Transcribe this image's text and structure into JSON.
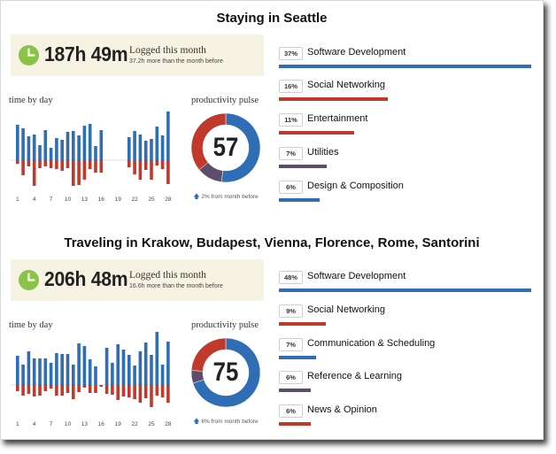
{
  "colors": {
    "blue": "#2f6db5",
    "red": "#c0392b",
    "purple": "#5b4d6b",
    "box_bg": "#f6f3e2",
    "clock_green": "#8bc34a"
  },
  "icons": {
    "clock": "clock-icon",
    "arrow": "up-arrow-icon"
  },
  "sections": [
    {
      "title": "Staying in Seattle",
      "logged": {
        "hours": "187h 49m",
        "label": "Logged this month",
        "sub": "37.2h more than the month before"
      },
      "time_by_day_label": "time by day",
      "productivity_label": "productivity pulse",
      "pulse": {
        "value": "57",
        "sub": "2% from month before",
        "segments": [
          {
            "color": "#2f6db5",
            "fraction": 0.52
          },
          {
            "color": "#5b4d6b",
            "fraction": 0.12
          },
          {
            "color": "#c0392b",
            "fraction": 0.36
          }
        ]
      },
      "day_ticks": [
        "1",
        "4",
        "7",
        "10",
        "13",
        "16",
        "19",
        "22",
        "25",
        "28"
      ],
      "days": {
        "up": [
          40,
          36,
          27,
          29,
          17,
          34,
          14,
          25,
          23,
          32,
          33,
          28,
          39,
          41,
          16,
          34,
          0,
          0,
          0,
          0,
          26,
          33,
          29,
          22,
          24,
          38,
          28,
          55
        ],
        "down": [
          4,
          17,
          7,
          29,
          9,
          7,
          9,
          10,
          12,
          9,
          29,
          28,
          22,
          10,
          14,
          14,
          0,
          0,
          0,
          0,
          8,
          16,
          22,
          11,
          22,
          6,
          10,
          27
        ]
      },
      "categories": [
        {
          "pct": "37%",
          "name": "Software Development",
          "value": 37,
          "color": "#2f6db5"
        },
        {
          "pct": "16%",
          "name": "Social Networking",
          "value": 16,
          "color": "#c0392b"
        },
        {
          "pct": "11%",
          "name": "Entertainment",
          "value": 11,
          "color": "#c0392b"
        },
        {
          "pct": "7%",
          "name": "Utilities",
          "value": 7,
          "color": "#5b4d6b"
        },
        {
          "pct": "6%",
          "name": "Design & Composition",
          "value": 6,
          "color": "#2f6db5"
        }
      ]
    },
    {
      "title": "Traveling in Krakow, Budapest, Vienna, Florence, Rome, Santorini",
      "logged": {
        "hours": "206h 48m",
        "label": "Logged this month",
        "sub": "16.6h more than the month before"
      },
      "time_by_day_label": "time by day",
      "productivity_label": "productivity pulse",
      "pulse": {
        "value": "75",
        "sub": "6% from month before",
        "segments": [
          {
            "color": "#2f6db5",
            "fraction": 0.7
          },
          {
            "color": "#5b4d6b",
            "fraction": 0.06
          },
          {
            "color": "#c0392b",
            "fraction": 0.24
          }
        ]
      },
      "day_ticks": [
        "1",
        "4",
        "7",
        "10",
        "13",
        "16",
        "19",
        "22",
        "25",
        "28"
      ],
      "days": {
        "up": [
          33,
          23,
          38,
          30,
          30,
          30,
          25,
          36,
          35,
          35,
          23,
          47,
          44,
          29,
          21,
          0,
          42,
          25,
          46,
          40,
          34,
          22,
          38,
          48,
          34,
          60,
          23,
          49
        ],
        "down": [
          7,
          12,
          10,
          13,
          12,
          7,
          4,
          12,
          12,
          9,
          16,
          8,
          3,
          9,
          9,
          2,
          10,
          11,
          17,
          13,
          14,
          16,
          20,
          15,
          25,
          12,
          14,
          20
        ]
      },
      "categories": [
        {
          "pct": "48%",
          "name": "Software Development",
          "value": 48,
          "color": "#2f6db5"
        },
        {
          "pct": "9%",
          "name": "Social Networking",
          "value": 9,
          "color": "#c0392b"
        },
        {
          "pct": "7%",
          "name": "Communication & Scheduling",
          "value": 7,
          "color": "#2f6db5"
        },
        {
          "pct": "6%",
          "name": "Reference & Learning",
          "value": 6,
          "color": "#5b4d6b"
        },
        {
          "pct": "6%",
          "name": "News & Opinion",
          "value": 6,
          "color": "#c0392b"
        }
      ]
    }
  ]
}
